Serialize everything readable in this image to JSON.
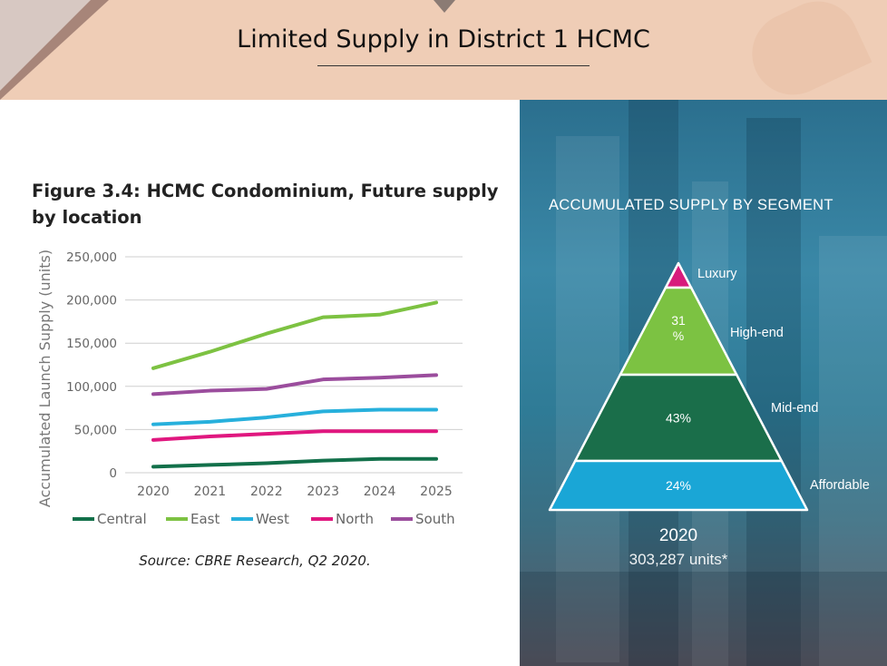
{
  "slide": {
    "title": "Limited Supply in District 1 HCMC"
  },
  "figure": {
    "title": "Figure 3.4: HCMC Condominium, Future supply by location",
    "source": "Source: CBRE Research, Q2 2020."
  },
  "chart_data": [
    {
      "type": "line",
      "title": "Figure 3.4: HCMC Condominium, Future supply by location",
      "xlabel": "",
      "ylabel": "Accumulated  Launch Supply (units)",
      "x": [
        "2020",
        "2021",
        "2022",
        "2023",
        "2024",
        "2025"
      ],
      "yticks": [
        0,
        50000,
        100000,
        150000,
        200000,
        250000
      ],
      "ytick_labels": [
        "0",
        "50,000",
        "100,000",
        "150,000",
        "200,000",
        "250,000"
      ],
      "ylim": [
        0,
        250000
      ],
      "grid": true,
      "legend": "bottom",
      "series": [
        {
          "name": "Central",
          "color": "#12704a",
          "values": [
            7000,
            9000,
            11000,
            14000,
            16000,
            16000
          ]
        },
        {
          "name": "East",
          "color": "#7dc242",
          "values": [
            121000,
            140000,
            161000,
            180000,
            183000,
            197000
          ]
        },
        {
          "name": "West",
          "color": "#27b0dc",
          "values": [
            56000,
            59000,
            64000,
            71000,
            73000,
            73000
          ]
        },
        {
          "name": "North",
          "color": "#e0177f",
          "values": [
            38000,
            42000,
            45000,
            48000,
            48000,
            48000
          ]
        },
        {
          "name": "South",
          "color": "#9b4d9d",
          "values": [
            91000,
            95000,
            97000,
            108000,
            110000,
            113000
          ]
        }
      ]
    },
    {
      "type": "pyramid",
      "title": "ACCUMULATED SUPPLY BY SEGMENT",
      "year": "2020",
      "total": "303,287 units*",
      "segments": [
        {
          "name": "Luxury",
          "value": 2,
          "label": "",
          "color": "#d81b7c"
        },
        {
          "name": "High-end",
          "value": 31,
          "label": "31 %",
          "color": "#7cc242"
        },
        {
          "name": "Mid-end",
          "value": 43,
          "label": "43%",
          "color": "#1a6e4a"
        },
        {
          "name": "Affordable",
          "value": 24,
          "label": "24%",
          "color": "#1aa6d6"
        }
      ]
    }
  ]
}
